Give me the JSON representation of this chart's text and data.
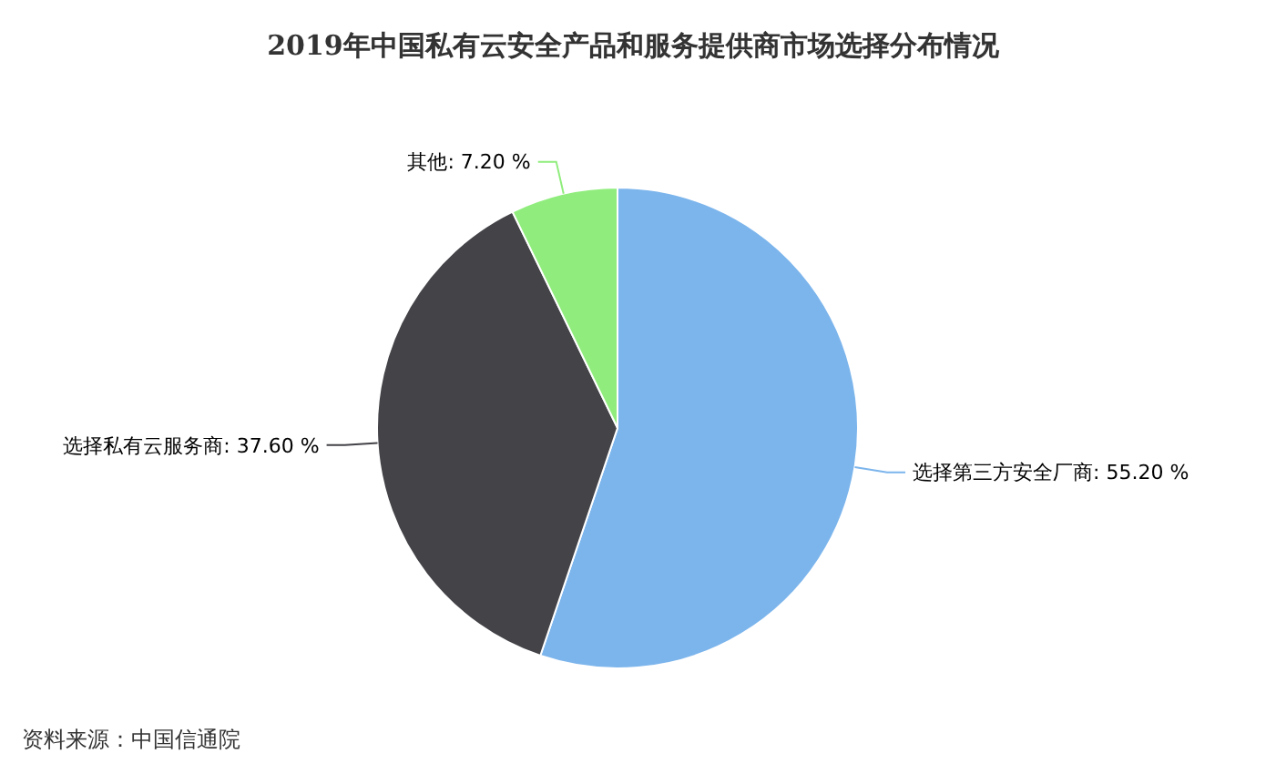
{
  "chart_data": {
    "type": "pie",
    "title": "2019年中国私有云安全产品和服务提供商市场选择分布情况",
    "categories": [
      "选择第三方安全厂商",
      "选择私有云服务商",
      "其他"
    ],
    "values": [
      55.2,
      37.6,
      7.2
    ],
    "colors": [
      "#7cb5ec",
      "#434348",
      "#90ed7d"
    ],
    "value_labels": [
      "55.20 %",
      "37.60 %",
      "7.20 %"
    ],
    "annotations": [
      "资料来源：中国信通院"
    ]
  }
}
